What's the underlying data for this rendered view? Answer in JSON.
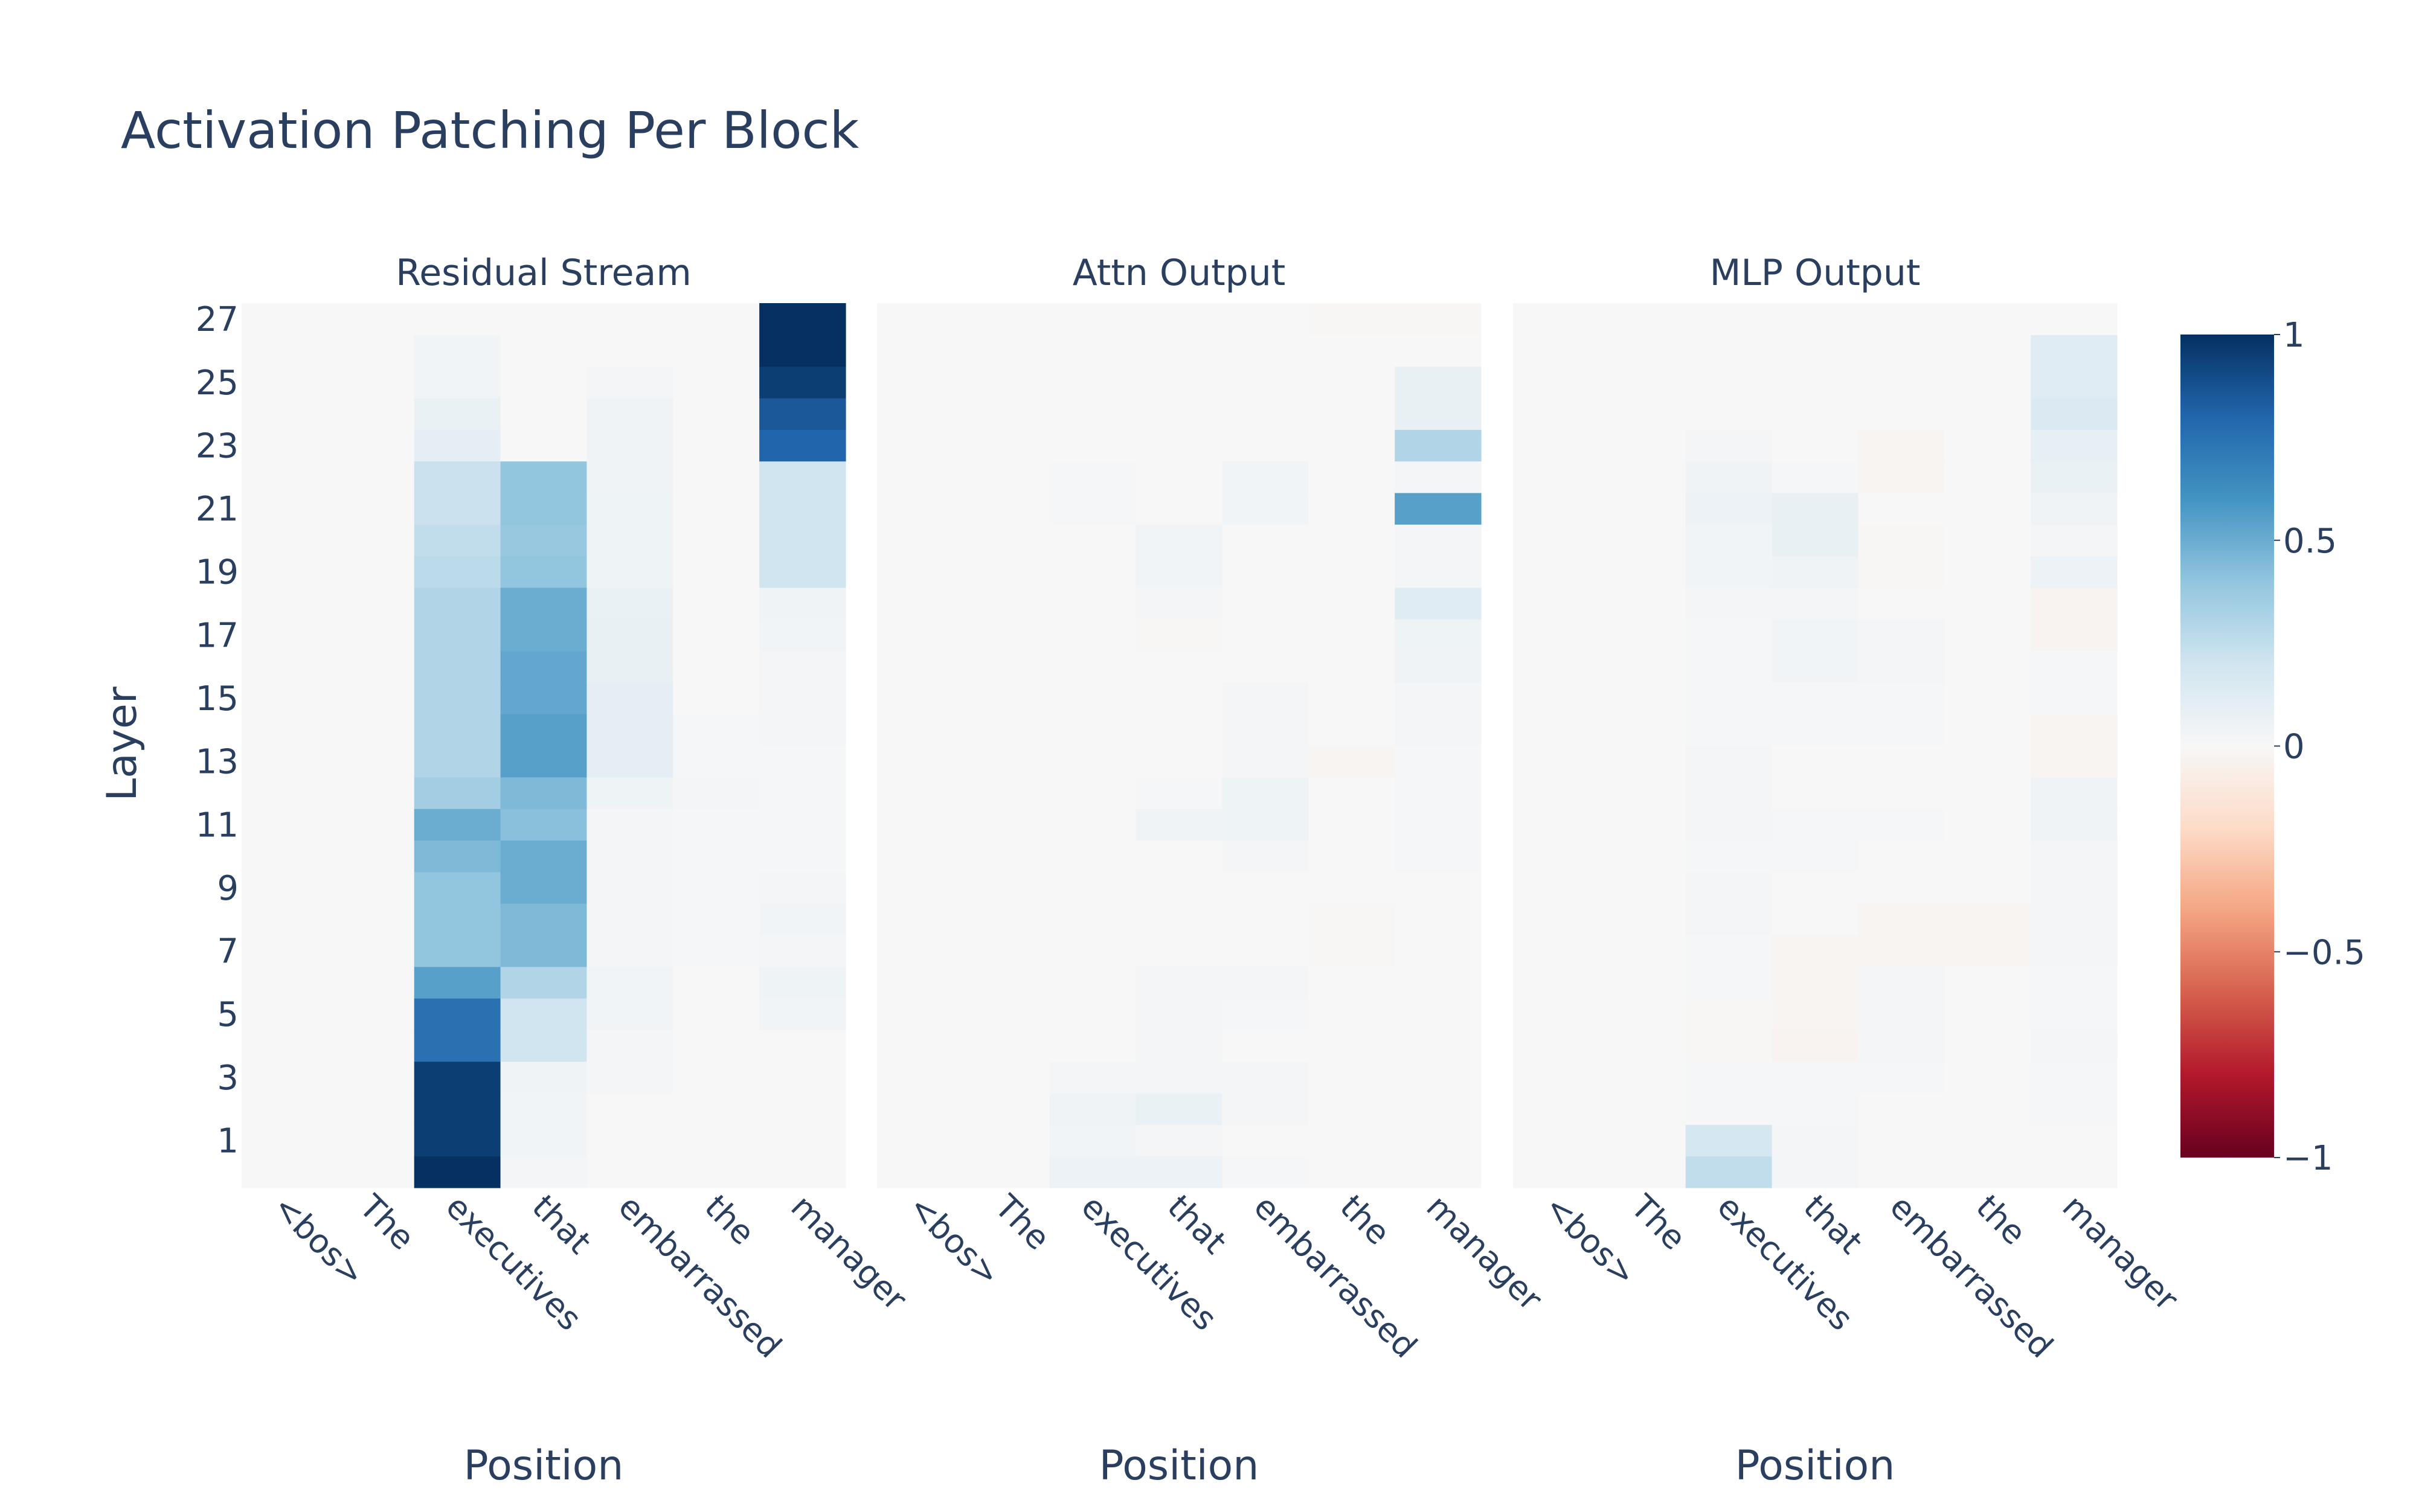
{
  "chart_data": {
    "type": "heatmap",
    "title": "Activation Patching Per Block",
    "y_axis_label": "Layer",
    "x_axis_label": "Position",
    "x_tick_labels": [
      "<bos>",
      "The",
      "executives",
      "that",
      "embarrassed",
      "the",
      "manager"
    ],
    "y_tick_labels": [
      "1",
      "3",
      "5",
      "7",
      "9",
      "11",
      "13",
      "15",
      "17",
      "19",
      "21",
      "23",
      "25",
      "27"
    ],
    "layers": [
      0,
      27
    ],
    "colorscale": "RdBu",
    "zlim": [
      -1,
      1
    ],
    "colorbar_ticks": [
      "1",
      "0.5",
      "0",
      "−0.5",
      "−1"
    ],
    "colorbar_tick_values": [
      1,
      0.5,
      0,
      -0.5,
      -1
    ],
    "subplots": [
      {
        "title": "Residual Stream",
        "columns": [
          [
            0,
            0,
            0,
            0,
            0,
            0,
            0,
            0,
            0,
            0,
            0,
            0,
            0,
            0,
            0,
            0,
            0,
            0,
            0,
            0,
            0,
            0,
            0,
            0,
            0,
            0,
            0,
            0
          ],
          [
            0,
            0,
            0,
            0,
            0,
            0,
            0,
            0,
            0,
            0,
            0,
            0,
            0,
            0,
            0,
            0,
            0,
            0,
            0,
            0,
            0,
            0,
            0,
            0,
            0,
            0,
            0,
            0
          ],
          [
            1.0,
            0.95,
            0.95,
            0.95,
            0.75,
            0.75,
            0.55,
            0.4,
            0.4,
            0.4,
            0.45,
            0.5,
            0.35,
            0.3,
            0.3,
            0.3,
            0.3,
            0.3,
            0.3,
            0.27,
            0.25,
            0.22,
            0.22,
            0.1,
            0.07,
            0.03,
            0.03,
            0
          ],
          [
            0.02,
            0.03,
            0.03,
            0.04,
            0.2,
            0.2,
            0.3,
            0.45,
            0.45,
            0.5,
            0.5,
            0.42,
            0.45,
            0.55,
            0.55,
            0.52,
            0.52,
            0.5,
            0.5,
            0.4,
            0.38,
            0.4,
            0.4,
            0,
            0,
            0,
            0,
            0
          ],
          [
            0,
            0,
            0,
            0.02,
            0.02,
            0.03,
            0.03,
            0.02,
            0.02,
            0.02,
            0.02,
            0.02,
            0.05,
            0.1,
            0.1,
            0.1,
            0.08,
            0.08,
            0.07,
            0.05,
            0.05,
            0.05,
            0.04,
            0.04,
            0.04,
            0.02,
            0,
            0
          ],
          [
            0,
            0,
            0,
            0,
            0,
            0,
            0,
            0.01,
            0.01,
            0.01,
            0.01,
            0.01,
            0.02,
            0.01,
            0.01,
            0,
            0,
            0,
            0,
            0,
            0,
            0,
            0,
            0,
            0,
            0,
            0,
            0
          ],
          [
            0,
            0,
            0,
            0,
            0,
            0.03,
            0.05,
            0.02,
            0.03,
            0.02,
            0.01,
            0.01,
            0.01,
            0.01,
            0.02,
            0.02,
            0.02,
            0.03,
            0.04,
            0.2,
            0.2,
            0.2,
            0.2,
            0.8,
            0.85,
            0.95,
            1.0,
            1.0
          ]
        ]
      },
      {
        "title": "Attn Output",
        "columns": [
          [
            0,
            0,
            0,
            0,
            0,
            0,
            0,
            0,
            0,
            0,
            0,
            0,
            0,
            0,
            0,
            0,
            0,
            0,
            0,
            0,
            0,
            0,
            0,
            0,
            0,
            0,
            0,
            0
          ],
          [
            0,
            0,
            0,
            0,
            0,
            0,
            0,
            0,
            0,
            0,
            0,
            0,
            0,
            0,
            0,
            0,
            0,
            0,
            0,
            0,
            0,
            0,
            0,
            0,
            0,
            0,
            0,
            0
          ],
          [
            0.06,
            0.03,
            0.04,
            0.02,
            0,
            0,
            0,
            0,
            0,
            0,
            0,
            0,
            0,
            0,
            0,
            0,
            0,
            0,
            0,
            0,
            0,
            0.01,
            0.01,
            0,
            0,
            0,
            0,
            0
          ],
          [
            0.06,
            0.02,
            0.07,
            0.02,
            0.02,
            0.02,
            0.02,
            0,
            0,
            0,
            0,
            0.04,
            0.01,
            0,
            0,
            0,
            0,
            -0.01,
            0.02,
            0.03,
            0.03,
            0,
            0,
            0,
            0,
            0,
            0,
            0
          ],
          [
            0.01,
            0,
            0.02,
            0.02,
            0,
            0.01,
            0.02,
            0,
            0,
            0,
            0.02,
            0.05,
            0.05,
            0.02,
            0.02,
            0.02,
            0,
            0,
            0,
            0,
            0,
            0.03,
            0.03,
            0,
            0,
            0,
            0,
            0
          ],
          [
            0,
            0,
            0,
            0,
            0,
            0,
            0,
            -0.01,
            -0.01,
            0,
            0,
            0,
            0,
            -0.02,
            0,
            0,
            0,
            0,
            0,
            0,
            0,
            0,
            0,
            0,
            0,
            0,
            0,
            -0.01
          ],
          [
            0,
            0,
            0,
            0,
            0,
            0,
            0,
            0,
            0,
            0,
            0.01,
            0.01,
            0.01,
            0.01,
            0.02,
            0.02,
            0.04,
            0.05,
            0.12,
            0.02,
            0.02,
            0.55,
            0.02,
            0.3,
            0.08,
            0.08,
            0,
            -0.01
          ]
        ]
      },
      {
        "title": "MLP Output",
        "columns": [
          [
            0,
            0,
            0,
            0,
            0,
            0,
            0,
            0,
            0,
            0,
            0,
            0,
            0,
            0,
            0,
            0,
            0,
            0,
            0,
            0,
            0,
            0,
            0,
            0,
            0,
            0,
            0,
            0
          ],
          [
            0,
            0,
            0,
            0,
            0,
            0,
            0,
            0,
            0,
            0,
            0,
            0,
            0,
            0,
            0,
            0,
            0,
            0,
            0,
            0,
            0,
            0,
            0,
            0,
            0,
            0,
            0,
            0
          ],
          [
            0.25,
            0.18,
            0.01,
            0.01,
            -0.01,
            -0.01,
            0.01,
            0.01,
            0.02,
            0.02,
            0.01,
            0.02,
            0.02,
            0.02,
            0.01,
            0.01,
            0.01,
            0.01,
            0.02,
            0.03,
            0.03,
            0.06,
            0.04,
            0.02,
            0,
            0,
            0,
            0
          ],
          [
            0.02,
            0.02,
            0.01,
            0.01,
            -0.03,
            -0.02,
            -0.02,
            -0.02,
            0,
            0,
            0.01,
            0.01,
            0,
            0,
            0.01,
            0.01,
            0.03,
            0.03,
            0.02,
            0.04,
            0.08,
            0.08,
            0.01,
            0,
            0,
            0,
            0,
            0
          ],
          [
            0,
            0,
            0,
            0.01,
            0.02,
            0.02,
            0.02,
            -0.02,
            -0.02,
            0,
            0,
            0.01,
            0,
            0,
            0.01,
            0.01,
            0.02,
            0.02,
            0,
            -0.01,
            -0.01,
            0,
            -0.02,
            -0.02,
            0,
            0,
            0,
            0
          ],
          [
            0,
            0,
            0,
            0,
            0,
            0,
            0,
            -0.02,
            -0.02,
            0,
            0,
            0,
            0,
            0,
            0,
            0,
            0,
            0,
            0,
            0,
            0,
            0,
            0,
            0,
            0,
            0,
            0,
            0
          ],
          [
            0,
            0,
            0.01,
            0.01,
            0.02,
            0.01,
            0.01,
            0.02,
            0.02,
            0.02,
            0.02,
            0.04,
            0.04,
            -0.02,
            -0.02,
            0.01,
            0.01,
            -0.03,
            -0.03,
            0.06,
            0.02,
            0.04,
            0.07,
            0.09,
            0.15,
            0.12,
            0.12,
            0
          ]
        ]
      }
    ]
  }
}
